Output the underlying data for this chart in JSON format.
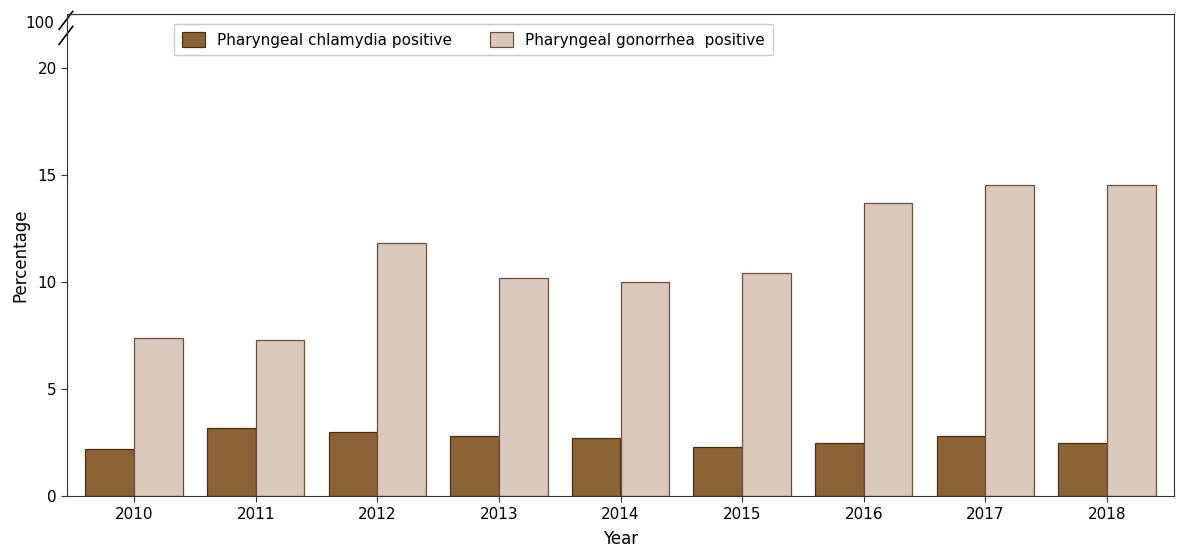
{
  "years": [
    "2010",
    "2011",
    "2012",
    "2013",
    "2014",
    "2015",
    "2016",
    "2017",
    "2018"
  ],
  "chlamydia": [
    2.2,
    3.2,
    3.0,
    2.8,
    2.7,
    2.3,
    2.5,
    2.8,
    2.5
  ],
  "gonorrhea": [
    7.4,
    7.3,
    11.8,
    10.2,
    10.0,
    10.4,
    13.7,
    14.5,
    14.5
  ],
  "chlamydia_color": "#8B6335",
  "gonorrhea_color": "#D9C8BC",
  "bar_width": 0.4,
  "chlamydia_edge_color": "#4A3010",
  "gonorrhea_edge_color": "#6A5040",
  "xlabel": "Year",
  "ylabel": "Percentage",
  "background_color": "#ffffff",
  "legend_chlamydia": "Pharyngeal chlamydia positive",
  "legend_gonorrhea": "Pharyngeal gonorrhea  positive",
  "yticks": [
    0,
    5,
    10,
    15,
    20
  ],
  "ytick_labels": [
    "0",
    "5",
    "10",
    "15",
    "20"
  ],
  "top_label": "100",
  "ylim_max": 22.5
}
